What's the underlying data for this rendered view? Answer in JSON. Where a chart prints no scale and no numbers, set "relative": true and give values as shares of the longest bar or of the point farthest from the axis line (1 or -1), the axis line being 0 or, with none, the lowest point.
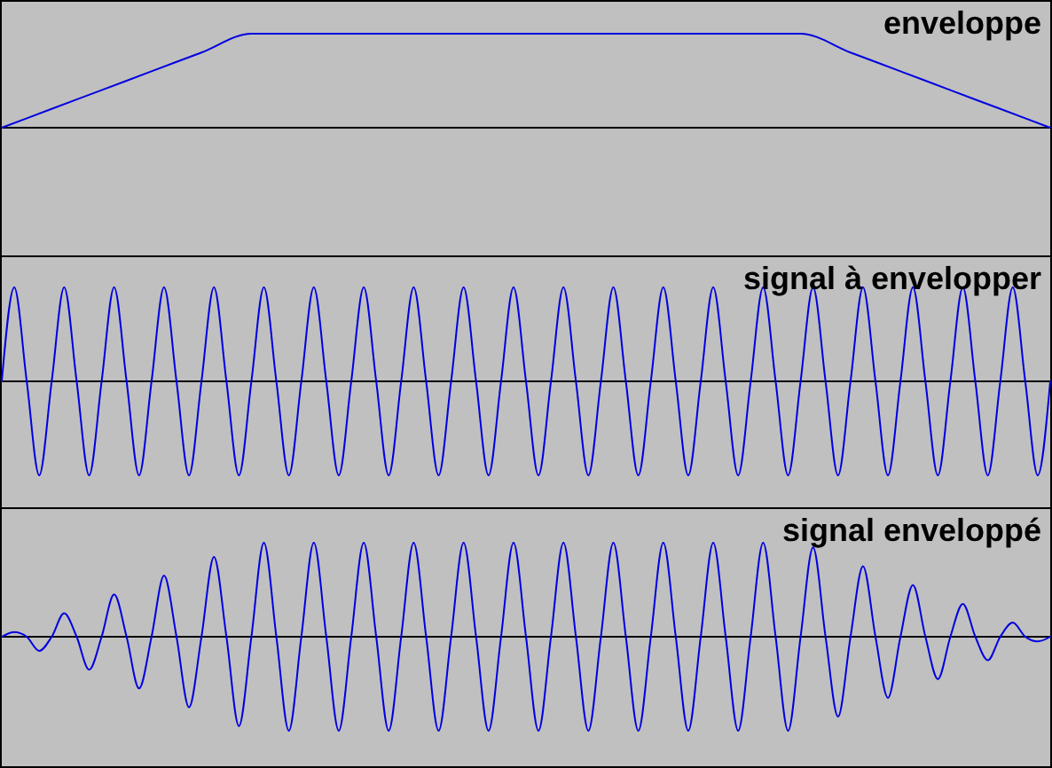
{
  "chart_data": [
    {
      "type": "line",
      "title": "enveloppe",
      "relative": true,
      "categories": [
        null,
        null,
        null,
        null,
        null,
        null,
        null,
        null,
        null,
        null,
        null,
        null,
        null,
        null,
        null,
        null,
        null,
        null,
        null,
        null,
        null,
        null
      ],
      "series": [
        {
          "color": "#0000e0",
          "values": [
            0,
            0.2,
            0.4,
            0.6,
            0.8,
            1,
            1,
            1,
            1,
            1,
            1,
            1,
            1,
            1,
            1,
            1,
            1,
            0.8,
            0.6,
            0.4,
            0.2,
            0
          ]
        }
      ]
    },
    {
      "type": "line",
      "title": "signal à envelopper",
      "relative": true,
      "categories": [
        null,
        null,
        null,
        null,
        null,
        null,
        null,
        null,
        null,
        null,
        null,
        null,
        null,
        null,
        null,
        null,
        null,
        null,
        null,
        null,
        null,
        null,
        null,
        null,
        null,
        null,
        null,
        null,
        null,
        null,
        null,
        null,
        null,
        null,
        null,
        null,
        null,
        null,
        null,
        null,
        null,
        null,
        null,
        null,
        null,
        null,
        null,
        null,
        null,
        null,
        null,
        null,
        null,
        null,
        null,
        null,
        null,
        null,
        null,
        null,
        null,
        null,
        null,
        null,
        null,
        null,
        null,
        null,
        null,
        null,
        null,
        null,
        null,
        null,
        null,
        null,
        null,
        null,
        null,
        null,
        null,
        null,
        null,
        null,
        null
      ],
      "series": [
        {
          "color": "#0000e0",
          "values": [
            0,
            1,
            0,
            -1,
            0,
            1,
            0,
            -1,
            0,
            1,
            0,
            -1,
            0,
            1,
            0,
            -1,
            0,
            1,
            0,
            -1,
            0,
            1,
            0,
            -1,
            0,
            1,
            0,
            -1,
            0,
            1,
            0,
            -1,
            0,
            1,
            0,
            -1,
            0,
            1,
            0,
            -1,
            0,
            1,
            0,
            -1,
            0,
            1,
            0,
            -1,
            0,
            1,
            0,
            -1,
            0,
            1,
            0,
            -1,
            0,
            1,
            0,
            -1,
            0,
            1,
            0,
            -1,
            0,
            1,
            0,
            -1,
            0,
            1,
            0,
            -1,
            0,
            1,
            0,
            -1,
            0,
            1,
            0,
            -1,
            0,
            1,
            0,
            -1,
            0
          ]
        }
      ]
    },
    {
      "type": "line",
      "title": "signal enveloppé",
      "relative": true,
      "categories": [
        null,
        null,
        null,
        null,
        null,
        null,
        null,
        null,
        null,
        null,
        null,
        null,
        null,
        null,
        null,
        null,
        null,
        null,
        null,
        null,
        null,
        null,
        null,
        null,
        null,
        null,
        null,
        null,
        null,
        null,
        null,
        null,
        null,
        null,
        null,
        null,
        null,
        null,
        null,
        null,
        null,
        null,
        null,
        null,
        null,
        null,
        null,
        null,
        null,
        null,
        null,
        null,
        null,
        null,
        null,
        null,
        null,
        null,
        null,
        null,
        null,
        null,
        null,
        null,
        null,
        null,
        null,
        null,
        null,
        null,
        null,
        null,
        null,
        null,
        null,
        null,
        null,
        null,
        null,
        null,
        null,
        null,
        null,
        null,
        null
      ],
      "series": [
        {
          "color": "#0000e0",
          "values": [
            0,
            0.05,
            0,
            -0.15,
            0,
            0.25,
            0,
            -0.35,
            0,
            0.45,
            0,
            -0.55,
            0,
            0.65,
            0,
            -0.75,
            0,
            0.85,
            0,
            -0.95,
            0,
            1,
            0,
            -1,
            0,
            1,
            0,
            -1,
            0,
            1,
            0,
            -1,
            0,
            1,
            0,
            -1,
            0,
            1,
            0,
            -1,
            0,
            1,
            0,
            -1,
            0,
            1,
            0,
            -1,
            0,
            1,
            0,
            -1,
            0,
            1,
            0,
            -1,
            0,
            1,
            0,
            -1,
            0,
            1,
            0,
            -1,
            0,
            0.95,
            0,
            -0.85,
            0,
            0.75,
            0,
            -0.65,
            0,
            0.55,
            0,
            -0.45,
            0,
            0.35,
            0,
            -0.25,
            0,
            0.15,
            0,
            -0.05,
            0
          ]
        }
      ]
    }
  ]
}
